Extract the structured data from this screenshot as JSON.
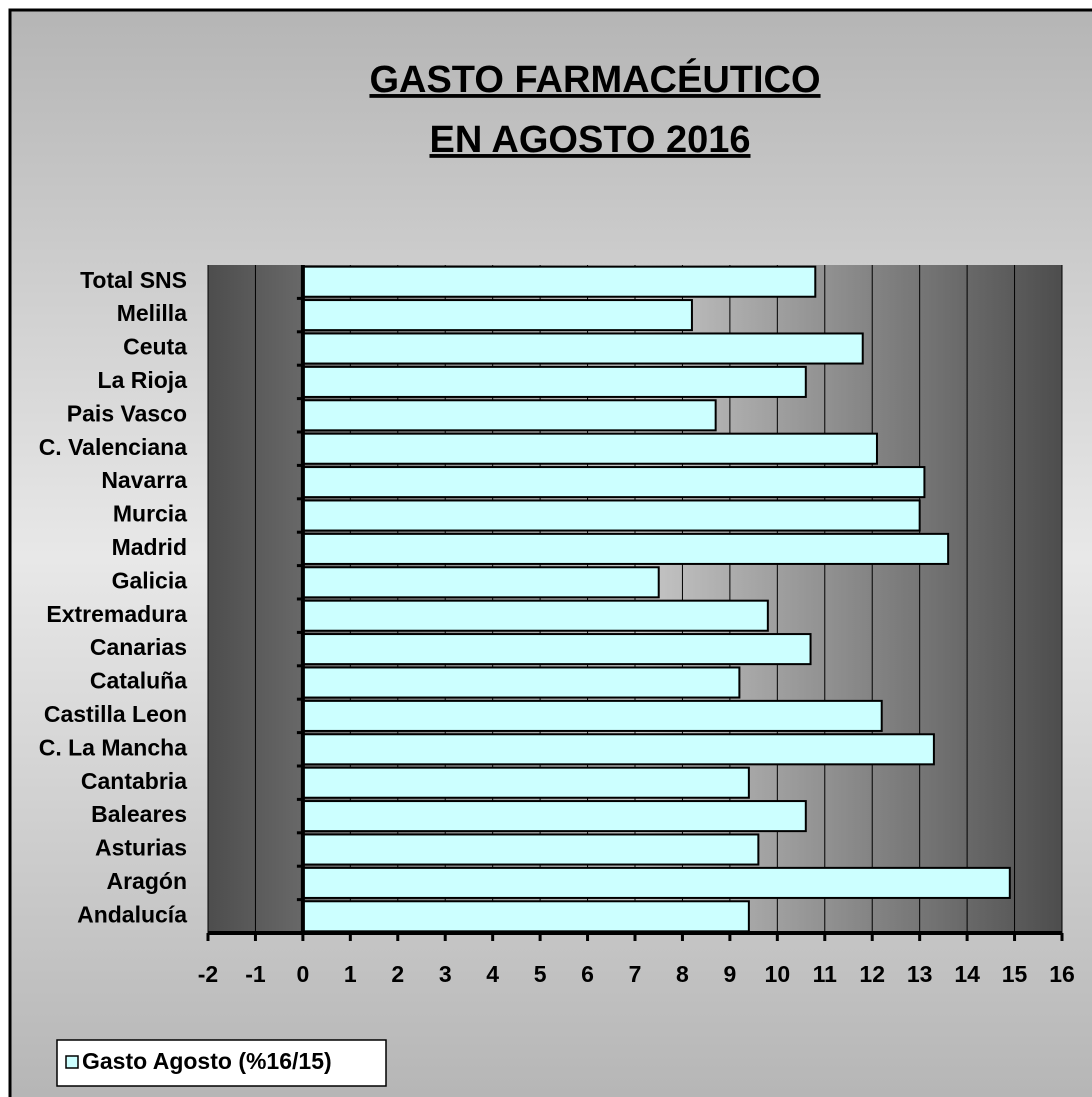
{
  "chart_data": {
    "type": "bar",
    "orientation": "horizontal",
    "title": [
      "GASTO FARMACÉUTICO",
      "EN AGOSTO 2016"
    ],
    "categories": [
      "Andalucía",
      "Aragón",
      "Asturias",
      "Baleares",
      "Cantabria",
      "C. La Mancha",
      "Castilla Leon",
      "Cataluña",
      "Canarias",
      "Extremadura",
      "Galicia",
      "Madrid",
      "Murcia",
      "Navarra",
      "C. Valenciana",
      "Pais Vasco",
      "La Rioja",
      "Ceuta",
      "Melilla",
      "Total SNS"
    ],
    "series": [
      {
        "name": "Gasto Agosto (%16/15)",
        "color": "#ccffff",
        "values": [
          9.4,
          14.9,
          9.6,
          10.6,
          9.4,
          13.3,
          12.2,
          9.2,
          10.7,
          9.8,
          7.5,
          13.6,
          13.0,
          13.1,
          12.1,
          8.7,
          10.6,
          11.8,
          8.2,
          10.8
        ]
      }
    ],
    "xlim": [
      -2,
      16
    ],
    "xticks": [
      -2,
      -1,
      0,
      1,
      2,
      3,
      4,
      5,
      6,
      7,
      8,
      9,
      10,
      11,
      12,
      13,
      14,
      15,
      16
    ],
    "grid": true,
    "legend": "bottom-left"
  }
}
